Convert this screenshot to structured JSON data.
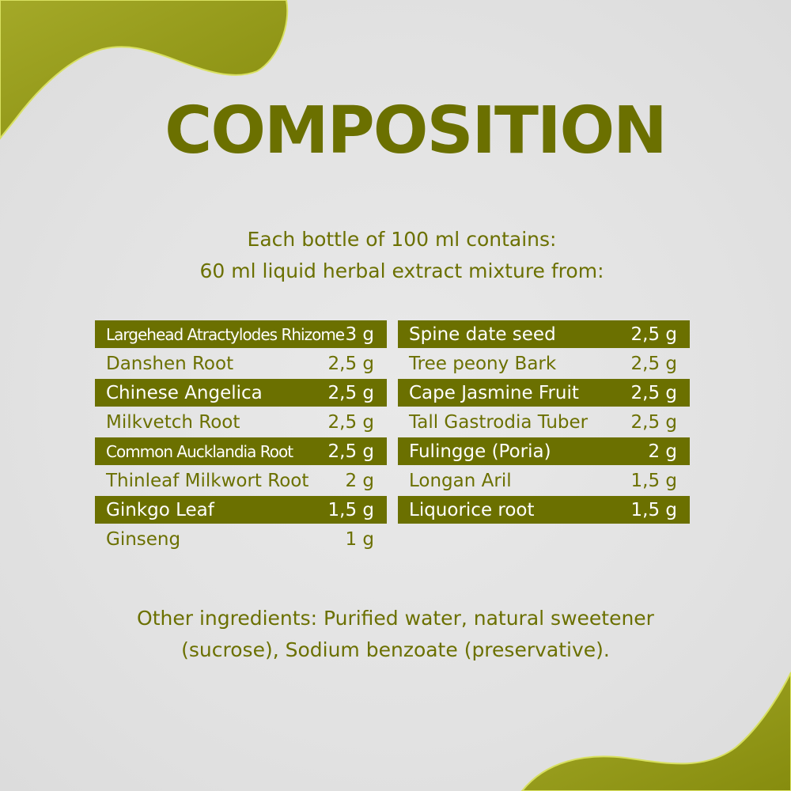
{
  "title": "COMPOSITION",
  "intro": {
    "line1": "Each bottle of 100 ml contains:",
    "line2": "60 ml liquid herbal extract mixture from:"
  },
  "colors": {
    "accent": "#6b7000",
    "blob": "#9aa020",
    "background": "#e4e4e4"
  },
  "ingredients_left": [
    {
      "name": "Largehead Atractylodes Rhizome",
      "amount": "3 g",
      "highlight": true
    },
    {
      "name": "Danshen Root",
      "amount": "2,5 g",
      "highlight": false
    },
    {
      "name": "Chinese Angelica",
      "amount": "2,5 g",
      "highlight": true
    },
    {
      "name": "Milkvetch Root",
      "amount": "2,5 g",
      "highlight": false
    },
    {
      "name": "Common Aucklandia Root",
      "amount": "2,5 g",
      "highlight": true
    },
    {
      "name": "Thinleaf Milkwort Root",
      "amount": "2 g",
      "highlight": false
    },
    {
      "name": "Ginkgo Leaf",
      "amount": "1,5 g",
      "highlight": true
    },
    {
      "name": "Ginseng",
      "amount": "1 g",
      "highlight": false
    }
  ],
  "ingredients_right": [
    {
      "name": "Spine date seed",
      "amount": "2,5 g",
      "highlight": true
    },
    {
      "name": "Tree peony Bark",
      "amount": "2,5 g",
      "highlight": false
    },
    {
      "name": "Cape Jasmine Fruit",
      "amount": "2,5 g",
      "highlight": true
    },
    {
      "name": "Tall Gastrodia Tuber",
      "amount": "2,5 g",
      "highlight": false
    },
    {
      "name": "Fulingge (Poria)",
      "amount": "2 g",
      "highlight": true
    },
    {
      "name": "Longan Aril",
      "amount": "1,5 g",
      "highlight": false
    },
    {
      "name": "Liquorice root",
      "amount": "1,5 g",
      "highlight": true
    }
  ],
  "other": {
    "line1": "Other ingredients: Purified water, natural sweetener",
    "line2": "(sucrose), Sodium benzoate (preservative)."
  }
}
